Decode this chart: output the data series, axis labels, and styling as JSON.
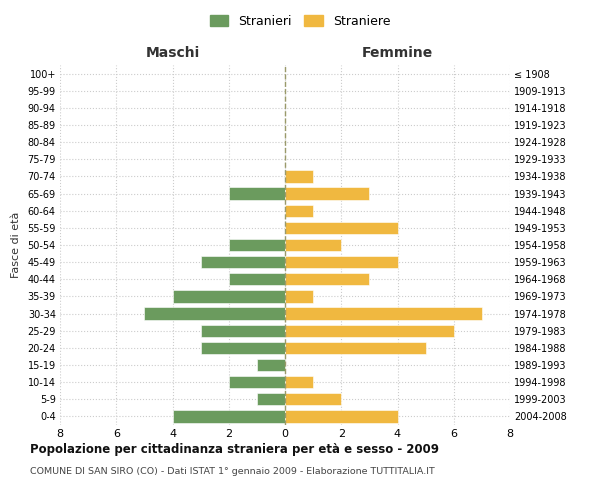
{
  "age_groups": [
    "0-4",
    "5-9",
    "10-14",
    "15-19",
    "20-24",
    "25-29",
    "30-34",
    "35-39",
    "40-44",
    "45-49",
    "50-54",
    "55-59",
    "60-64",
    "65-69",
    "70-74",
    "75-79",
    "80-84",
    "85-89",
    "90-94",
    "95-99",
    "100+"
  ],
  "birth_years": [
    "2004-2008",
    "1999-2003",
    "1994-1998",
    "1989-1993",
    "1984-1988",
    "1979-1983",
    "1974-1978",
    "1969-1973",
    "1964-1968",
    "1959-1963",
    "1954-1958",
    "1949-1953",
    "1944-1948",
    "1939-1943",
    "1934-1938",
    "1929-1933",
    "1924-1928",
    "1919-1923",
    "1914-1918",
    "1909-1913",
    "≤ 1908"
  ],
  "maschi": [
    4,
    1,
    2,
    1,
    3,
    3,
    5,
    4,
    2,
    3,
    2,
    0,
    0,
    2,
    0,
    0,
    0,
    0,
    0,
    0,
    0
  ],
  "femmine": [
    4,
    2,
    1,
    0,
    5,
    6,
    7,
    1,
    3,
    4,
    2,
    4,
    1,
    3,
    1,
    0,
    0,
    0,
    0,
    0,
    0
  ],
  "maschi_color": "#6b9b5e",
  "femmine_color": "#f0b840",
  "background_color": "#ffffff",
  "grid_color": "#cccccc",
  "center_line_color": "#9a9a6a",
  "xlim": 8,
  "title": "Popolazione per cittadinanza straniera per età e sesso - 2009",
  "subtitle": "COMUNE DI SAN SIRO (CO) - Dati ISTAT 1° gennaio 2009 - Elaborazione TUTTITALIA.IT",
  "ylabel_left": "Fasce di età",
  "xlabel_maschi": "Maschi",
  "xlabel_femmine": "Femmine",
  "legend_stranieri": "Stranieri",
  "legend_straniere": "Straniere"
}
